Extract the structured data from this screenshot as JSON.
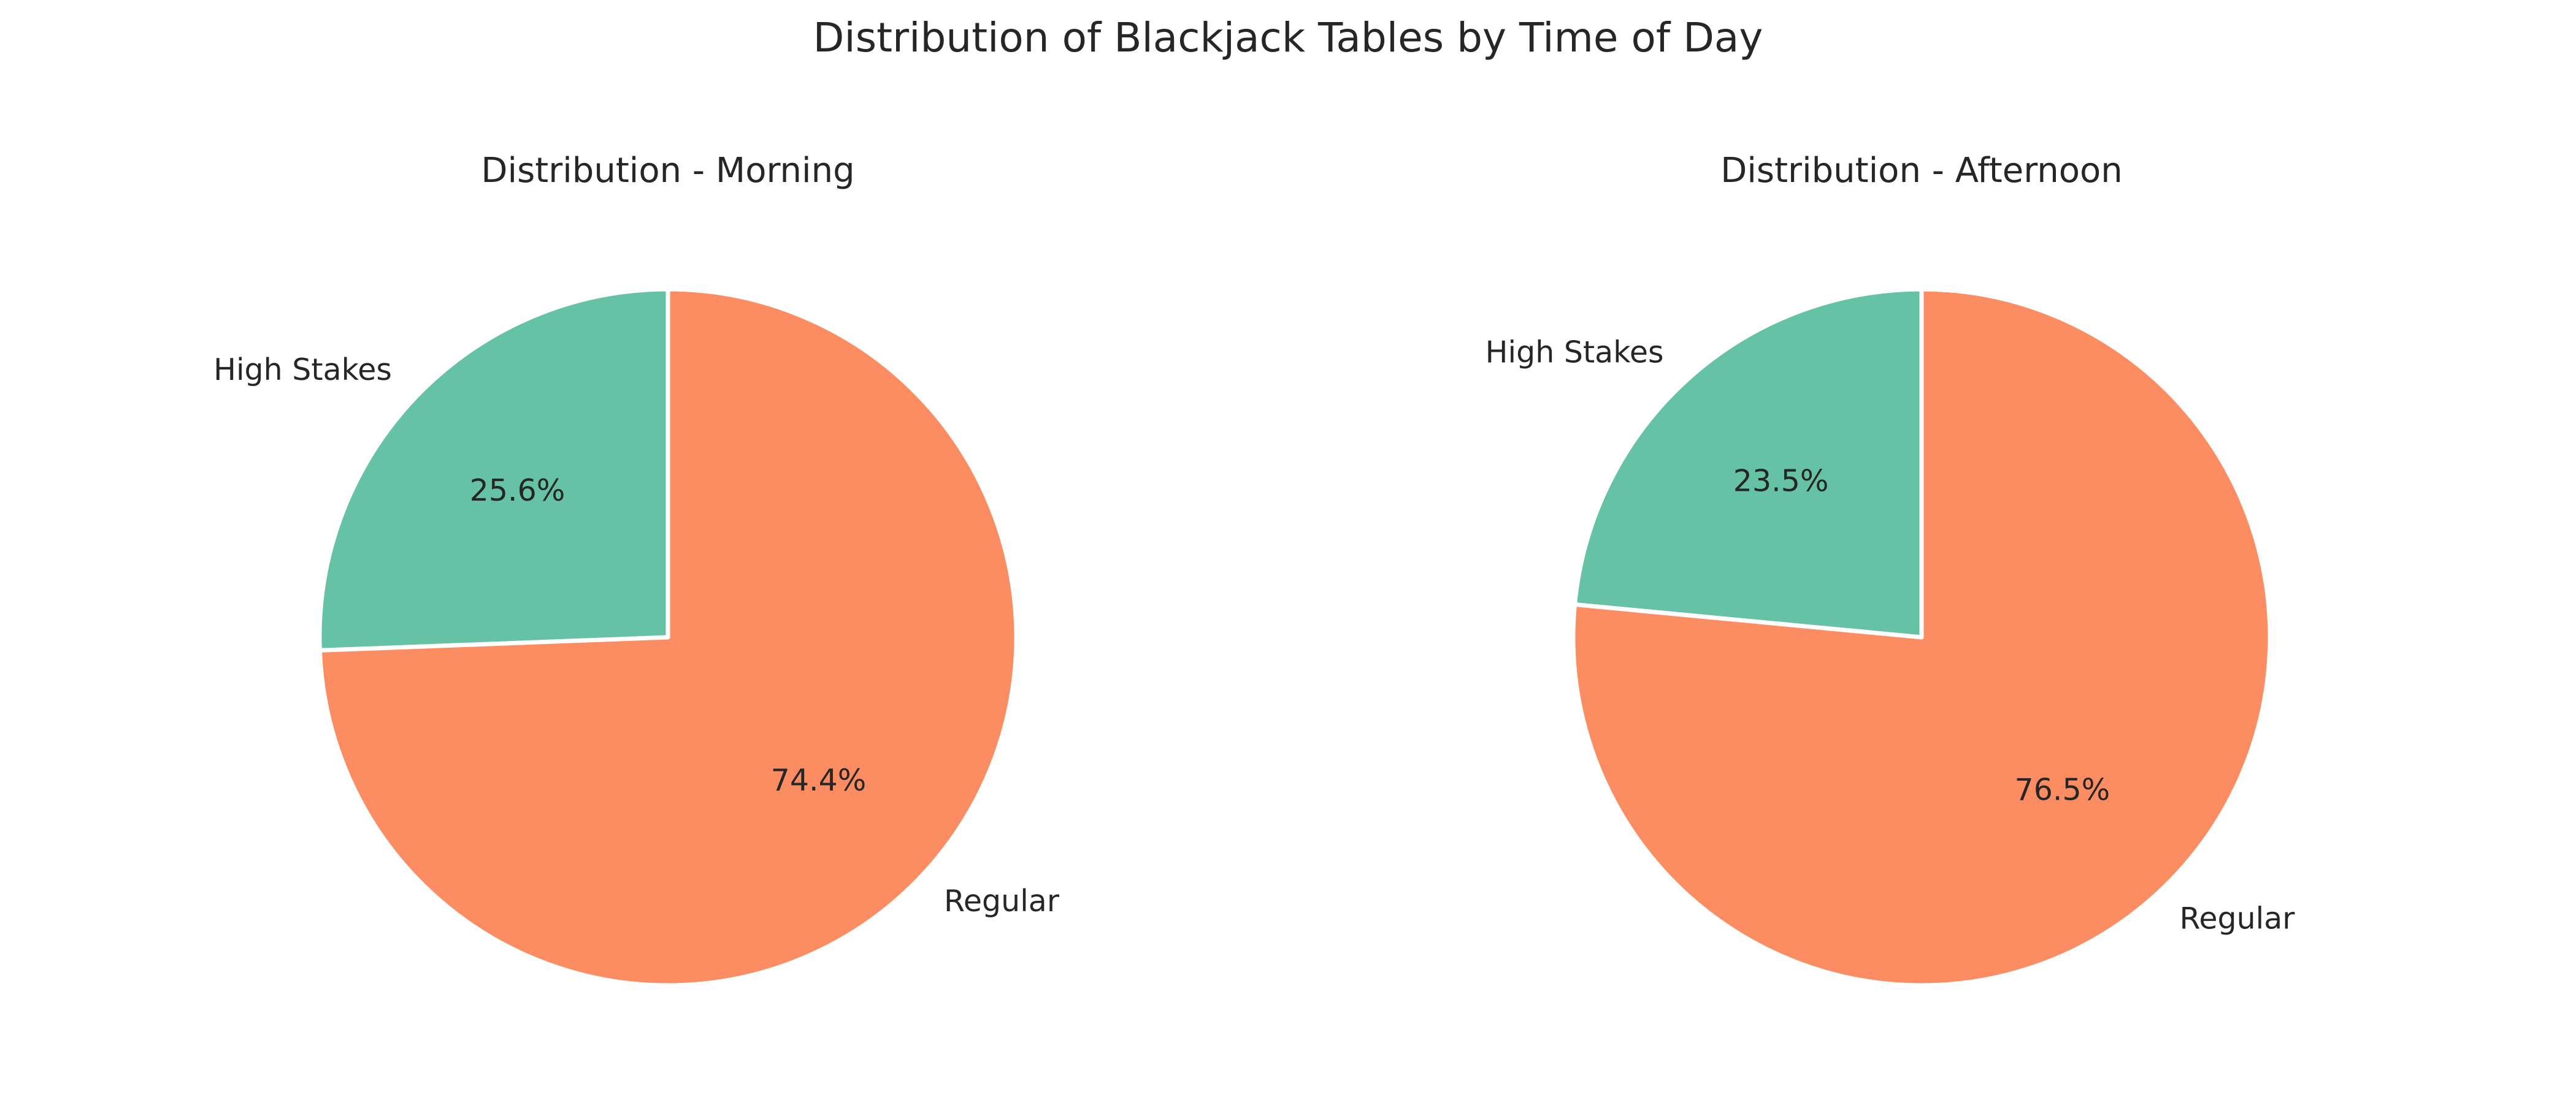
{
  "figure": {
    "title": "Distribution of Blackjack Tables by Time of Day"
  },
  "chart_data": [
    {
      "type": "pie",
      "title": "Distribution - Morning",
      "categories": [
        "High Stakes",
        "Regular"
      ],
      "values": [
        25.6,
        74.4
      ],
      "value_labels": [
        "25.6%",
        "74.4%"
      ],
      "colors": [
        "#66c2a5",
        "#fc8d62"
      ],
      "start_angle": 90,
      "direction": "counterclockwise",
      "wedge_edge_color": "#ffffff"
    },
    {
      "type": "pie",
      "title": "Distribution - Afternoon",
      "categories": [
        "High Stakes",
        "Regular"
      ],
      "values": [
        23.5,
        76.5
      ],
      "value_labels": [
        "23.5%",
        "76.5%"
      ],
      "colors": [
        "#66c2a5",
        "#fc8d62"
      ],
      "start_angle": 90,
      "direction": "counterclockwise",
      "wedge_edge_color": "#ffffff"
    }
  ]
}
